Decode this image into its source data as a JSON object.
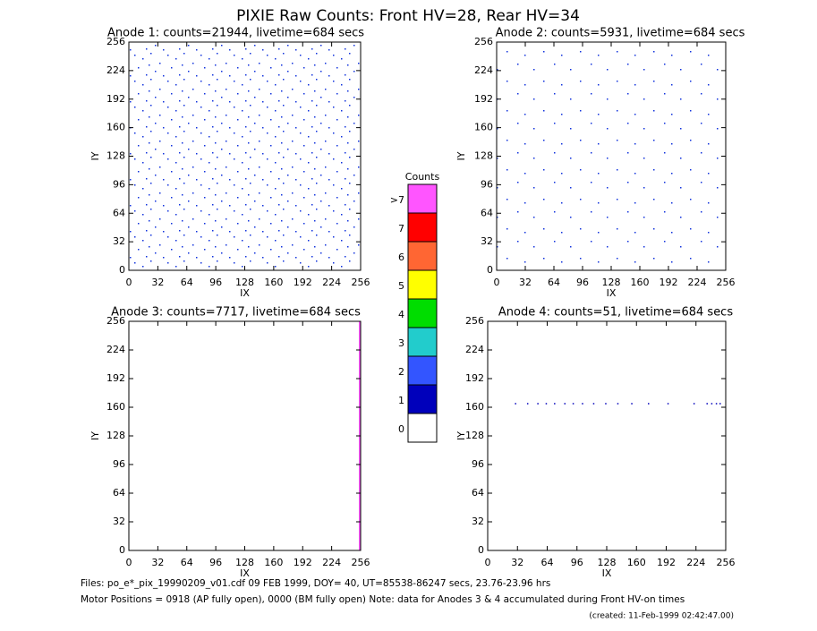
{
  "title": "PIXIE Raw Counts:  Front HV=28, Rear HV=34",
  "chart_data": [
    {
      "type": "image",
      "title": "Anode 1: counts=21944, livetime=684 secs",
      "xlabel": "IX",
      "ylabel": "IY",
      "xlim": [
        0,
        256
      ],
      "ylim": [
        0,
        256
      ],
      "xticks": [
        0,
        32,
        64,
        96,
        128,
        160,
        192,
        224,
        256
      ],
      "yticks": [
        0,
        32,
        64,
        96,
        128,
        160,
        192,
        224,
        256
      ]
    },
    {
      "type": "image",
      "title": "Anode 2: counts=5931, livetime=684 secs",
      "xlabel": "IX",
      "ylabel": "IY",
      "xlim": [
        0,
        256
      ],
      "ylim": [
        0,
        256
      ],
      "xticks": [
        0,
        32,
        64,
        96,
        128,
        160,
        192,
        224,
        256
      ],
      "yticks": [
        0,
        32,
        64,
        96,
        128,
        160,
        192,
        224,
        256
      ]
    },
    {
      "type": "image",
      "title": "Anode 3: counts=7717, livetime=684 secs",
      "xlabel": "IX",
      "ylabel": "IY",
      "xlim": [
        0,
        256
      ],
      "ylim": [
        0,
        256
      ],
      "xticks": [
        0,
        32,
        64,
        96,
        128,
        160,
        192,
        224,
        256
      ],
      "yticks": [
        0,
        32,
        64,
        96,
        128,
        160,
        192,
        224,
        256
      ]
    },
    {
      "type": "scatter",
      "title": "Anode 4: counts=51, livetime=684 secs",
      "xlabel": "IX",
      "ylabel": "IY",
      "xlim": [
        0,
        256
      ],
      "ylim": [
        0,
        256
      ],
      "xticks": [
        0,
        32,
        64,
        96,
        128,
        160,
        192,
        224,
        256
      ],
      "yticks": [
        0,
        32,
        64,
        96,
        128,
        160,
        192,
        224,
        256
      ],
      "color": "#0000bb",
      "x": [
        30,
        43,
        54,
        63,
        72,
        83,
        92,
        102,
        114,
        127,
        140,
        155,
        173,
        194,
        222,
        236,
        241,
        246,
        250
      ],
      "y": [
        164,
        164,
        164,
        164,
        164,
        164,
        164,
        164,
        164,
        164,
        164,
        164,
        164,
        164,
        164,
        164,
        164,
        164,
        164
      ]
    }
  ],
  "colorbar": {
    "title": "Counts",
    "levels": [
      {
        "label": ">7",
        "color": "#ff55ff"
      },
      {
        "label": "7",
        "color": "#ff0000"
      },
      {
        "label": "6",
        "color": "#ff6633"
      },
      {
        "label": "5",
        "color": "#ffff00"
      },
      {
        "label": "4",
        "color": "#00dd00"
      },
      {
        "label": "3",
        "color": "#22cccc"
      },
      {
        "label": "2",
        "color": "#3355ff"
      },
      {
        "label": "1",
        "color": "#0000bb"
      },
      {
        "label": "0",
        "color": "#ffffff"
      }
    ]
  },
  "footer": {
    "files": "Files: po_e*_pix_19990209_v01.cdf    09 FEB 1999, DOY= 40, UT=85538-86247 secs, 23.76-23.96 hrs",
    "motor": "Motor Positions = 0918 (AP fully open), 0000 (BM fully open)    Note: data for Anodes 3 & 4 accumulated during Front HV-on times",
    "created": "(created: 11-Feb-1999 02:42:47.00)"
  }
}
